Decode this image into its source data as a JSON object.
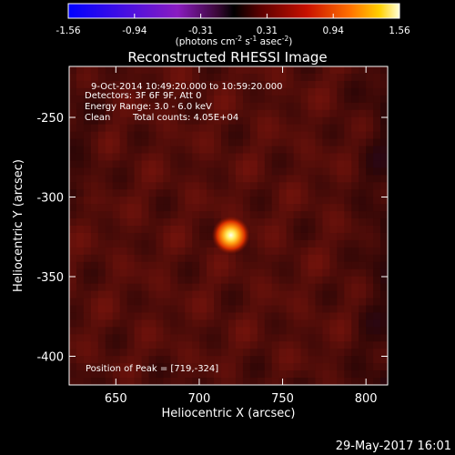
{
  "chart_data": {
    "type": "heatmap",
    "title": "Reconstructed RHESSI Image",
    "xlabel": "Heliocentric X (arcsec)",
    "ylabel": "Heliocentric Y (arcsec)",
    "xlim": [
      622,
      813
    ],
    "ylim": [
      -418,
      -218
    ],
    "x_ticks": [
      650,
      700,
      750,
      800
    ],
    "y_ticks": [
      -250,
      -300,
      -350,
      -400
    ],
    "colorbar": {
      "range": [
        -1.56,
        1.56
      ],
      "ticks": [
        "-1.56",
        "-0.94",
        "-0.31",
        "0.31",
        "0.94",
        "1.56"
      ],
      "unit_label": "(photons cm",
      "unit_exp1": "-2",
      "unit_mid": " s",
      "unit_exp2": "-1",
      "unit_end": " asec",
      "unit_exp3": "-2",
      "unit_close": ")"
    },
    "source_peak": {
      "x": 719,
      "y": -324,
      "value": 1.56
    },
    "annotations": {
      "time": "9-Oct-2014 10:49:20.000 to 10:59:20.000",
      "detectors": "Detectors: 3F 6F 9F, Att 0",
      "energy": "Energy Range: 3.0 - 6.0 keV",
      "clean": "Clean",
      "counts": "Total counts: 4.05E+04",
      "peak": "Position of Peak = [719,-324]"
    }
  },
  "footer": {
    "timestamp": "29-May-2017 16:01"
  }
}
